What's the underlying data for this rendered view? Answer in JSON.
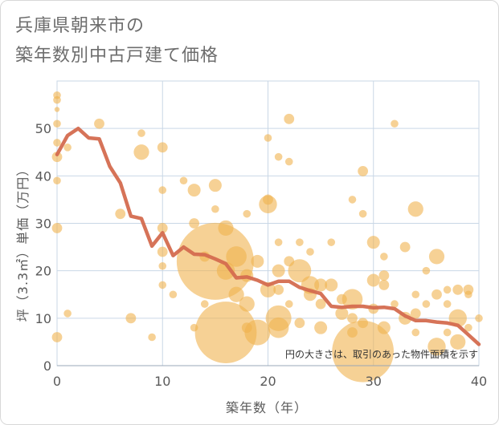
{
  "title_lines": [
    "兵庫県朝来市の",
    "築年数別中古戸建て価格"
  ],
  "chart_data": {
    "type": "scatter",
    "title": "兵庫県朝来市の築年数別中古戸建て価格",
    "xlabel": "築年数（年）",
    "ylabel": "坪（3.3㎡）単価（万円）",
    "xlim": [
      0,
      40
    ],
    "ylim": [
      0,
      60
    ],
    "x_ticks": [
      0,
      10,
      20,
      30,
      40
    ],
    "y_ticks": [
      0,
      10,
      20,
      30,
      40,
      50
    ],
    "grid": true,
    "note": "円の大きさは、取引のあった物件面積を示す",
    "colors": {
      "bubble": "#f0b24e",
      "line": "#d46b4f",
      "grid": "#c9d7e6"
    },
    "series": [
      {
        "kind": "bubble",
        "points": [
          {
            "x": 0,
            "y": 57,
            "s": 3
          },
          {
            "x": 0,
            "y": 56,
            "s": 3
          },
          {
            "x": 0,
            "y": 54,
            "s": 2
          },
          {
            "x": 0,
            "y": 51,
            "s": 3
          },
          {
            "x": 0,
            "y": 47,
            "s": 3
          },
          {
            "x": 0,
            "y": 44,
            "s": 4
          },
          {
            "x": 0,
            "y": 39,
            "s": 3
          },
          {
            "x": 0,
            "y": 29,
            "s": 4
          },
          {
            "x": 0,
            "y": 6,
            "s": 4
          },
          {
            "x": 1,
            "y": 46,
            "s": 3
          },
          {
            "x": 1,
            "y": 11,
            "s": 3
          },
          {
            "x": 4,
            "y": 51,
            "s": 4
          },
          {
            "x": 6,
            "y": 32,
            "s": 4
          },
          {
            "x": 7,
            "y": 10,
            "s": 4
          },
          {
            "x": 8,
            "y": 49,
            "s": 3
          },
          {
            "x": 8,
            "y": 45,
            "s": 6
          },
          {
            "x": 9,
            "y": 6,
            "s": 3
          },
          {
            "x": 10,
            "y": 46,
            "s": 4
          },
          {
            "x": 10,
            "y": 37,
            "s": 3
          },
          {
            "x": 10,
            "y": 29,
            "s": 4
          },
          {
            "x": 10,
            "y": 24,
            "s": 4
          },
          {
            "x": 10,
            "y": 21,
            "s": 3
          },
          {
            "x": 10,
            "y": 17,
            "s": 3
          },
          {
            "x": 11,
            "y": 15,
            "s": 3
          },
          {
            "x": 12,
            "y": 39,
            "s": 3
          },
          {
            "x": 13,
            "y": 37,
            "s": 5
          },
          {
            "x": 13,
            "y": 30,
            "s": 4
          },
          {
            "x": 13,
            "y": 8,
            "s": 3
          },
          {
            "x": 14,
            "y": 23,
            "s": 4
          },
          {
            "x": 14,
            "y": 13,
            "s": 3
          },
          {
            "x": 15,
            "y": 38,
            "s": 5
          },
          {
            "x": 15,
            "y": 33,
            "s": 3
          },
          {
            "x": 15,
            "y": 22,
            "s": 30
          },
          {
            "x": 16,
            "y": 29,
            "s": 6
          },
          {
            "x": 16,
            "y": 20,
            "s": 7
          },
          {
            "x": 16,
            "y": 7,
            "s": 24
          },
          {
            "x": 17,
            "y": 23,
            "s": 8
          },
          {
            "x": 17,
            "y": 15,
            "s": 6
          },
          {
            "x": 18,
            "y": 32,
            "s": 3
          },
          {
            "x": 18,
            "y": 19,
            "s": 5
          },
          {
            "x": 18,
            "y": 13,
            "s": 6
          },
          {
            "x": 18,
            "y": 8,
            "s": 4
          },
          {
            "x": 19,
            "y": 22,
            "s": 5
          },
          {
            "x": 19,
            "y": 7,
            "s": 10
          },
          {
            "x": 20,
            "y": 48,
            "s": 3
          },
          {
            "x": 20,
            "y": 35,
            "s": 4
          },
          {
            "x": 20,
            "y": 34,
            "s": 7
          },
          {
            "x": 20,
            "y": 16,
            "s": 6
          },
          {
            "x": 21,
            "y": 44,
            "s": 3
          },
          {
            "x": 21,
            "y": 26,
            "s": 3
          },
          {
            "x": 21,
            "y": 20,
            "s": 5
          },
          {
            "x": 21,
            "y": 16,
            "s": 4
          },
          {
            "x": 21,
            "y": 10,
            "s": 10
          },
          {
            "x": 21,
            "y": 8,
            "s": 8
          },
          {
            "x": 22,
            "y": 52,
            "s": 4
          },
          {
            "x": 22,
            "y": 43,
            "s": 3
          },
          {
            "x": 22,
            "y": 22,
            "s": 4
          },
          {
            "x": 22,
            "y": 13,
            "s": 3
          },
          {
            "x": 23,
            "y": 26,
            "s": 3
          },
          {
            "x": 23,
            "y": 20,
            "s": 9
          },
          {
            "x": 23,
            "y": 9,
            "s": 4
          },
          {
            "x": 24,
            "y": 24,
            "s": 3
          },
          {
            "x": 24,
            "y": 17,
            "s": 7
          },
          {
            "x": 24,
            "y": 15,
            "s": 5
          },
          {
            "x": 25,
            "y": 17,
            "s": 5
          },
          {
            "x": 25,
            "y": 13,
            "s": 4
          },
          {
            "x": 25,
            "y": 8,
            "s": 5
          },
          {
            "x": 26,
            "y": 26,
            "s": 3
          },
          {
            "x": 26,
            "y": 17,
            "s": 5
          },
          {
            "x": 27,
            "y": 14,
            "s": 4
          },
          {
            "x": 27,
            "y": 11,
            "s": 5
          },
          {
            "x": 28,
            "y": 35,
            "s": 3
          },
          {
            "x": 28,
            "y": 14,
            "s": 8
          },
          {
            "x": 28,
            "y": 10,
            "s": 4
          },
          {
            "x": 28,
            "y": 7,
            "s": 4
          },
          {
            "x": 29,
            "y": 41,
            "s": 4
          },
          {
            "x": 29,
            "y": 32,
            "s": 3
          },
          {
            "x": 29,
            "y": 9,
            "s": 4
          },
          {
            "x": 29,
            "y": 3,
            "s": 24
          },
          {
            "x": 30,
            "y": 26,
            "s": 5
          },
          {
            "x": 30,
            "y": 18,
            "s": 5
          },
          {
            "x": 30,
            "y": 12,
            "s": 4
          },
          {
            "x": 31,
            "y": 23,
            "s": 3
          },
          {
            "x": 31,
            "y": 19,
            "s": 4
          },
          {
            "x": 31,
            "y": 17,
            "s": 4
          },
          {
            "x": 31,
            "y": 8,
            "s": 5
          },
          {
            "x": 32,
            "y": 51,
            "s": 3
          },
          {
            "x": 32,
            "y": 13,
            "s": 3
          },
          {
            "x": 33,
            "y": 25,
            "s": 4
          },
          {
            "x": 33,
            "y": 10,
            "s": 5
          },
          {
            "x": 34,
            "y": 33,
            "s": 6
          },
          {
            "x": 34,
            "y": 15,
            "s": 3
          },
          {
            "x": 34,
            "y": 11,
            "s": 4
          },
          {
            "x": 34,
            "y": 7,
            "s": 3
          },
          {
            "x": 35,
            "y": 20,
            "s": 3
          },
          {
            "x": 35,
            "y": 13,
            "s": 3
          },
          {
            "x": 36,
            "y": 23,
            "s": 6
          },
          {
            "x": 36,
            "y": 15,
            "s": 4
          },
          {
            "x": 36,
            "y": 4,
            "s": 7
          },
          {
            "x": 37,
            "y": 16,
            "s": 3
          },
          {
            "x": 37,
            "y": 13,
            "s": 3
          },
          {
            "x": 37,
            "y": 7,
            "s": 3
          },
          {
            "x": 38,
            "y": 16,
            "s": 4
          },
          {
            "x": 38,
            "y": 10,
            "s": 7
          },
          {
            "x": 38,
            "y": 5,
            "s": 6
          },
          {
            "x": 39,
            "y": 16,
            "s": 4
          },
          {
            "x": 39,
            "y": 15,
            "s": 3
          },
          {
            "x": 39,
            "y": 8,
            "s": 3
          },
          {
            "x": 40,
            "y": 10,
            "s": 3
          }
        ]
      },
      {
        "kind": "line",
        "points": [
          {
            "x": 0,
            "y": 44.5
          },
          {
            "x": 1,
            "y": 48.5
          },
          {
            "x": 2,
            "y": 50
          },
          {
            "x": 3,
            "y": 48
          },
          {
            "x": 4,
            "y": 47.8
          },
          {
            "x": 5,
            "y": 42
          },
          {
            "x": 6,
            "y": 38.5
          },
          {
            "x": 7,
            "y": 31.5
          },
          {
            "x": 8,
            "y": 31
          },
          {
            "x": 9,
            "y": 25.2
          },
          {
            "x": 10,
            "y": 28
          },
          {
            "x": 11,
            "y": 23.2
          },
          {
            "x": 12,
            "y": 25
          },
          {
            "x": 13,
            "y": 23.5
          },
          {
            "x": 14,
            "y": 23.4
          },
          {
            "x": 15,
            "y": 22.5
          },
          {
            "x": 16,
            "y": 21.5
          },
          {
            "x": 17,
            "y": 18.5
          },
          {
            "x": 18,
            "y": 18.7
          },
          {
            "x": 19,
            "y": 18
          },
          {
            "x": 20,
            "y": 17
          },
          {
            "x": 21,
            "y": 17.8
          },
          {
            "x": 22,
            "y": 17.8
          },
          {
            "x": 23,
            "y": 16.5
          },
          {
            "x": 24,
            "y": 15.8
          },
          {
            "x": 25,
            "y": 15.2
          },
          {
            "x": 26,
            "y": 12.5
          },
          {
            "x": 27,
            "y": 12.3
          },
          {
            "x": 28,
            "y": 12.5
          },
          {
            "x": 29,
            "y": 12.5
          },
          {
            "x": 30,
            "y": 12.2
          },
          {
            "x": 31,
            "y": 12.3
          },
          {
            "x": 32,
            "y": 12
          },
          {
            "x": 33,
            "y": 10.5
          },
          {
            "x": 34,
            "y": 9.5
          },
          {
            "x": 35,
            "y": 9.5
          },
          {
            "x": 36,
            "y": 9.2
          },
          {
            "x": 37,
            "y": 9
          },
          {
            "x": 38,
            "y": 8.5
          },
          {
            "x": 39,
            "y": 6.5
          },
          {
            "x": 40,
            "y": 4.5
          }
        ]
      }
    ]
  }
}
